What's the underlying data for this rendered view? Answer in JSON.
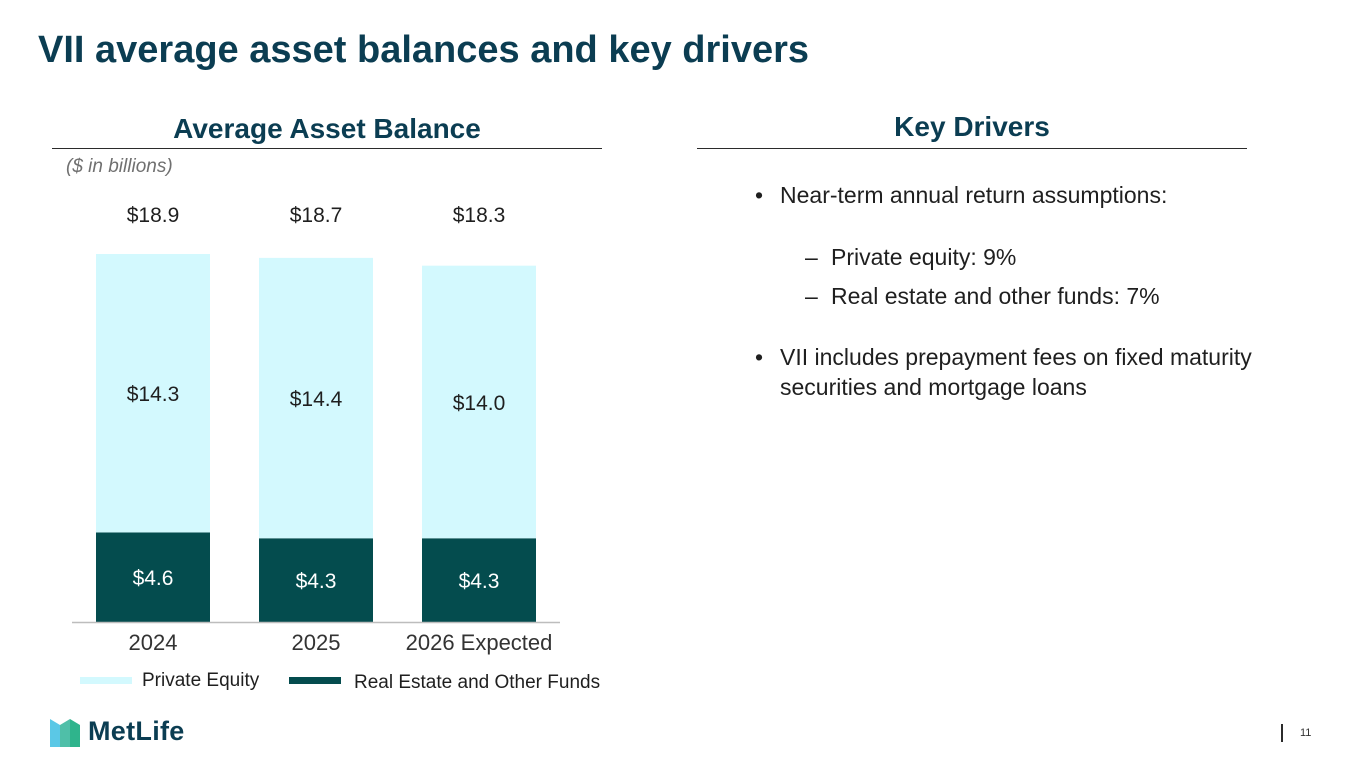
{
  "slide": {
    "title": "VII average asset balances and key drivers",
    "page_number": "11",
    "brand": "MetLife"
  },
  "left_panel": {
    "heading": "Average Asset Balance",
    "units": "($ in billions)"
  },
  "right_panel": {
    "heading": "Key Drivers",
    "bullet_1": "Near-term annual return assumptions:",
    "sub_1": "Private equity: 9%",
    "sub_2": "Real estate and other funds: 7%",
    "bullet_2": "VII includes prepayment fees on fixed maturity securities and mortgage loans",
    "bullet_mark": "•",
    "sub_mark": "–"
  },
  "colors": {
    "private_equity": "#d3f9fe",
    "real_estate": "#044c4e",
    "title": "#0b3d52",
    "logo_light": "#5bc8e6",
    "logo_dark": "#2fb48c"
  },
  "chart_data": {
    "type": "bar",
    "stacked": true,
    "title": "Average Asset Balance",
    "ylabel": "($ in billions)",
    "categories": [
      "2024",
      "2025",
      "2026 Expected"
    ],
    "series": [
      {
        "name": "Real Estate and Other Funds",
        "values": [
          4.6,
          4.3,
          4.3
        ],
        "labels": [
          "$4.6",
          "$4.3",
          "$4.3"
        ]
      },
      {
        "name": "Private Equity",
        "values": [
          14.3,
          14.4,
          14.0
        ],
        "labels": [
          "$14.3",
          "$14.4",
          "$14.0"
        ]
      }
    ],
    "totals": [
      18.9,
      18.7,
      18.3
    ],
    "total_labels": [
      "$18.9",
      "$18.7",
      "$18.3"
    ],
    "legend": [
      "Private Equity",
      "Real Estate and Other Funds"
    ],
    "legend_position": "bottom",
    "grid": false,
    "ylim": [
      0,
      18.9
    ]
  }
}
